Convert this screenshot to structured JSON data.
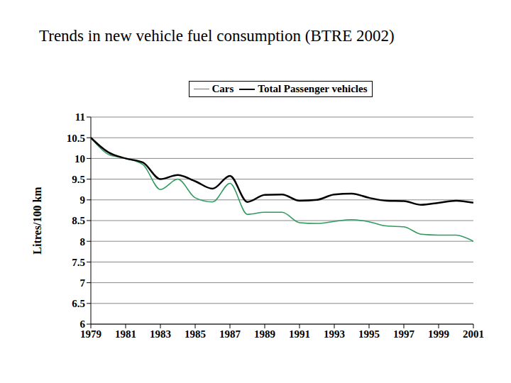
{
  "chart_data": {
    "type": "line",
    "title": "Trends in new vehicle fuel consumption (BTRE 2002)",
    "y_label": "Litres/100 km",
    "x": [
      1979,
      1980,
      1981,
      1982,
      1983,
      1984,
      1985,
      1986,
      1987,
      1988,
      1989,
      1990,
      1991,
      1992,
      1993,
      1994,
      1995,
      1996,
      1997,
      1998,
      1999,
      2000,
      2001
    ],
    "series": [
      {
        "name": "Cars",
        "color": "#2e9a5e",
        "values": [
          10.5,
          10.1,
          10.0,
          9.85,
          9.25,
          9.5,
          9.05,
          8.95,
          9.4,
          8.65,
          8.7,
          8.7,
          8.45,
          8.43,
          8.48,
          8.52,
          8.47,
          8.37,
          8.35,
          8.17,
          8.15,
          8.15,
          8.0
        ]
      },
      {
        "name": "Total Passenger vehicles",
        "color": "#000000",
        "values": [
          10.5,
          10.15,
          10.0,
          9.9,
          9.5,
          9.6,
          9.45,
          9.27,
          9.58,
          8.95,
          9.12,
          9.13,
          8.98,
          9.0,
          9.13,
          9.15,
          9.05,
          8.98,
          8.97,
          8.88,
          8.93,
          8.98,
          8.93
        ]
      }
    ],
    "xlim": [
      1979,
      2001
    ],
    "xticks": [
      1979,
      1981,
      1983,
      1985,
      1987,
      1989,
      1991,
      1993,
      1995,
      1997,
      1999,
      2001
    ],
    "ylim": [
      6,
      11
    ],
    "yticks": [
      6,
      6.5,
      7,
      7.5,
      8,
      8.5,
      9,
      9.5,
      10,
      10.5,
      11
    ],
    "grid": true,
    "legend": "top"
  }
}
